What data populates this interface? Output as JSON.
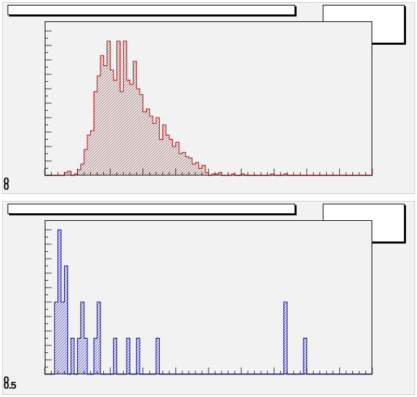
{
  "panels": [
    {
      "title": "",
      "stats": "",
      "corner_labels": [
        "0",
        "0"
      ],
      "chart_data": {
        "type": "bar",
        "style": "histogram",
        "color": "#cc0000",
        "fill_pattern": "hatch",
        "xlim": [
          0,
          100
        ],
        "ylim": [
          0,
          100
        ],
        "values": [
          0,
          0,
          0,
          0,
          0,
          0,
          2,
          3,
          0,
          1,
          4,
          8,
          18,
          28,
          31,
          58,
          69,
          83,
          76,
          93,
          73,
          66,
          93,
          58,
          93,
          66,
          63,
          79,
          60,
          56,
          44,
          46,
          41,
          36,
          40,
          25,
          35,
          28,
          25,
          20,
          23,
          15,
          16,
          13,
          12,
          8,
          9,
          5,
          7,
          2,
          0,
          1,
          1,
          2,
          0,
          0,
          0,
          1,
          0,
          0,
          1,
          0,
          0,
          0,
          0,
          0,
          0,
          0,
          0,
          1,
          0,
          0,
          0,
          1,
          0,
          0,
          0,
          0,
          0,
          0,
          0,
          0,
          0,
          0,
          0,
          0,
          0,
          0,
          0,
          0,
          0,
          0,
          0,
          0,
          0,
          0,
          0,
          0,
          0,
          0
        ]
      }
    },
    {
      "title": "",
      "stats": "",
      "corner_labels": [
        "0",
        "0.5"
      ],
      "chart_data": {
        "type": "bar",
        "style": "histogram",
        "color": "#0000aa",
        "fill_pattern": "hatch",
        "xlim": [
          0,
          50
        ],
        "ylim": [
          0,
          8
        ],
        "values": [
          0,
          0,
          0,
          4,
          8,
          4,
          6,
          0,
          2,
          0,
          2,
          4,
          2,
          0,
          0,
          2,
          4,
          0,
          0,
          0,
          0,
          2,
          0,
          0,
          0,
          2,
          0,
          0,
          2,
          0,
          0,
          0,
          0,
          0,
          2,
          0,
          0,
          0,
          0,
          0,
          0,
          0,
          0,
          0,
          0,
          0,
          0,
          0,
          0,
          0,
          0,
          0,
          0,
          0,
          0,
          0,
          0,
          0,
          0,
          0,
          0,
          0,
          0,
          0,
          0,
          0,
          0,
          0,
          0,
          0,
          0,
          0,
          0,
          4,
          0,
          0,
          0,
          0,
          0,
          2,
          0,
          0,
          0,
          0,
          0,
          0,
          0,
          0,
          0,
          0,
          0,
          0,
          0,
          0,
          0,
          0,
          0,
          0,
          0,
          0
        ]
      }
    }
  ]
}
